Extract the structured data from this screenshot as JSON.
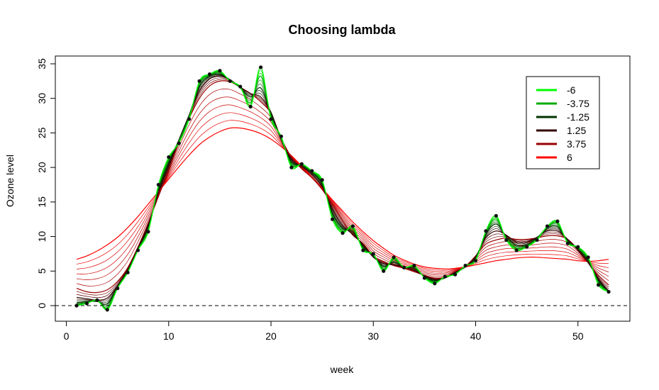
{
  "chart_data": {
    "type": "line",
    "title": "Choosing lambda",
    "xlabel": "week",
    "ylabel": "Ozone level",
    "xlim": [
      1,
      53
    ],
    "ylim": [
      -1.5,
      35
    ],
    "xticks": [
      0,
      10,
      20,
      30,
      40,
      50
    ],
    "yticks": [
      0,
      5,
      10,
      15,
      20,
      25,
      30,
      35
    ],
    "reference_line": {
      "y": 0,
      "style": "dashed",
      "color": "#000000"
    },
    "legend": {
      "position": "top-right",
      "entries": [
        {
          "label": "-6",
          "color": "#00ff00"
        },
        {
          "label": "-3.75",
          "color": "#00aa00"
        },
        {
          "label": "-1.25",
          "color": "#003300"
        },
        {
          "label": "1.25",
          "color": "#330000"
        },
        {
          "label": "3.75",
          "color": "#990000"
        },
        {
          "label": "6",
          "color": "#ff0000"
        }
      ]
    },
    "points": {
      "x": [
        1,
        2,
        3,
        4,
        5,
        6,
        7,
        8,
        9,
        10,
        11,
        12,
        13,
        14,
        15,
        16,
        17,
        18,
        19,
        20,
        21,
        22,
        23,
        24,
        25,
        26,
        27,
        28,
        29,
        30,
        31,
        32,
        33,
        34,
        35,
        36,
        37,
        38,
        39,
        40,
        41,
        42,
        43,
        44,
        45,
        46,
        47,
        48,
        49,
        50,
        51,
        52,
        53
      ],
      "y": [
        0,
        0.3,
        0.8,
        -0.6,
        2.5,
        4.8,
        8,
        10.7,
        17.5,
        21.5,
        23.5,
        27,
        32.5,
        33.5,
        34,
        32.5,
        31.7,
        28.8,
        34.5,
        27,
        24.5,
        20,
        20.5,
        19.5,
        18.2,
        12.5,
        10.5,
        11.5,
        8,
        7.5,
        5,
        7,
        5.5,
        5.8,
        4,
        3.2,
        4.2,
        4.5,
        5.8,
        6.5,
        10.8,
        13,
        9.5,
        8,
        8.5,
        9.5,
        11.5,
        12.2,
        9,
        8.5,
        7,
        3,
        2
      ]
    },
    "series": [
      {
        "name": "-6",
        "color": "#00ff00",
        "values": [
          0,
          0.3,
          0.8,
          -0.6,
          2.5,
          4.8,
          8,
          10.7,
          17.5,
          21.5,
          23.5,
          27,
          32.5,
          33.5,
          34,
          32.5,
          31.7,
          28.8,
          34.5,
          27,
          24.5,
          20,
          20.5,
          19.5,
          18.2,
          12.5,
          10.5,
          11.5,
          8,
          7.5,
          5,
          7,
          5.5,
          5.8,
          4,
          3.2,
          4.2,
          4.5,
          5.8,
          6.5,
          10.8,
          13,
          9.5,
          8,
          8.5,
          9.5,
          11.5,
          12.2,
          9,
          8.5,
          7,
          3,
          2
        ]
      },
      {
        "name": "-3.75",
        "color": "#00aa00",
        "values": [
          0.1,
          0.4,
          0.7,
          -0.3,
          2.6,
          4.9,
          8.1,
          11,
          17.2,
          21.2,
          23.8,
          27.3,
          32.2,
          33.4,
          33.8,
          32.6,
          31.5,
          29.4,
          33.2,
          27.4,
          24.2,
          20.4,
          20.4,
          19.4,
          17.9,
          12.9,
          10.8,
          11.1,
          8.2,
          7.3,
          5.3,
          6.7,
          5.6,
          5.6,
          4.1,
          3.4,
          4.1,
          4.6,
          5.7,
          6.7,
          10.6,
          12.5,
          9.7,
          8.3,
          8.6,
          9.7,
          11.4,
          11.9,
          9.2,
          8.4,
          6.8,
          3.3,
          2
        ]
      },
      {
        "name": "-1.25",
        "color": "#003300",
        "values": [
          0.4,
          0.6,
          0.6,
          0.3,
          2.7,
          5,
          8.2,
          11.3,
          16.8,
          20.7,
          24,
          27.6,
          31.7,
          33.2,
          33.5,
          32.7,
          31.5,
          30.2,
          31.5,
          27.8,
          24,
          20.8,
          20.3,
          19.3,
          17.6,
          13.4,
          11.2,
          10.7,
          8.5,
          7.2,
          5.7,
          6.3,
          5.6,
          5.4,
          4.2,
          3.6,
          4,
          4.7,
          5.6,
          6.9,
          10.3,
          11.8,
          10,
          8.7,
          8.8,
          9.8,
          11.2,
          11.4,
          9.4,
          8.2,
          6.5,
          3.6,
          2
        ]
      },
      {
        "name": "1.25",
        "color": "#330000",
        "values": [
          1.2,
          1,
          0.8,
          1.1,
          2.9,
          5.2,
          8.3,
          11.7,
          16.3,
          20.2,
          24,
          27.6,
          31,
          32.8,
          33.2,
          32.7,
          31.6,
          30.7,
          30.2,
          28,
          24,
          21.2,
          20.1,
          19,
          17.2,
          14,
          11.6,
          10.3,
          8.8,
          7,
          6.1,
          5.9,
          5.6,
          5.1,
          4.3,
          3.8,
          4,
          4.8,
          5.6,
          7.1,
          9.8,
          10.8,
          10.2,
          9.2,
          9.2,
          9.9,
          10.8,
          10.8,
          9.6,
          8,
          6.2,
          3.9,
          2.1
        ]
      },
      {
        "name": "3.75",
        "color": "#990000",
        "values": [
          2.5,
          2,
          1.9,
          2.3,
          3.5,
          5.5,
          8.5,
          12,
          15.8,
          19.6,
          23.5,
          27.1,
          30,
          31.8,
          32.5,
          32.4,
          31.6,
          30.7,
          29.5,
          27.8,
          24.2,
          21.5,
          19.8,
          18.5,
          16.8,
          14.6,
          12.3,
          10.2,
          9,
          7.2,
          6.4,
          5.8,
          5.4,
          4.9,
          4.4,
          4,
          4.1,
          4.9,
          5.7,
          7.2,
          8.9,
          9.5,
          9.8,
          9.6,
          9.6,
          9.8,
          10.1,
          10.1,
          9.6,
          8.1,
          6.2,
          4.4,
          3
        ]
      },
      {
        "name": "6",
        "color": "#ff0000",
        "values": [
          6.7,
          7.2,
          7.9,
          8.8,
          9.9,
          11.3,
          12.9,
          14.7,
          16.5,
          18.3,
          20.1,
          21.8,
          23.3,
          24.4,
          25.2,
          25.7,
          25.7,
          25.4,
          24.9,
          24.1,
          23,
          21.7,
          20.2,
          18.6,
          17,
          15.3,
          13.7,
          12.1,
          10.7,
          9.4,
          8.3,
          7.3,
          6.6,
          6,
          5.6,
          5.4,
          5.3,
          5.4,
          5.6,
          5.9,
          6.2,
          6.5,
          6.7,
          6.9,
          7,
          7,
          6.9,
          6.8,
          6.7,
          6.5,
          6.4,
          6.5,
          6.7
        ]
      }
    ]
  }
}
